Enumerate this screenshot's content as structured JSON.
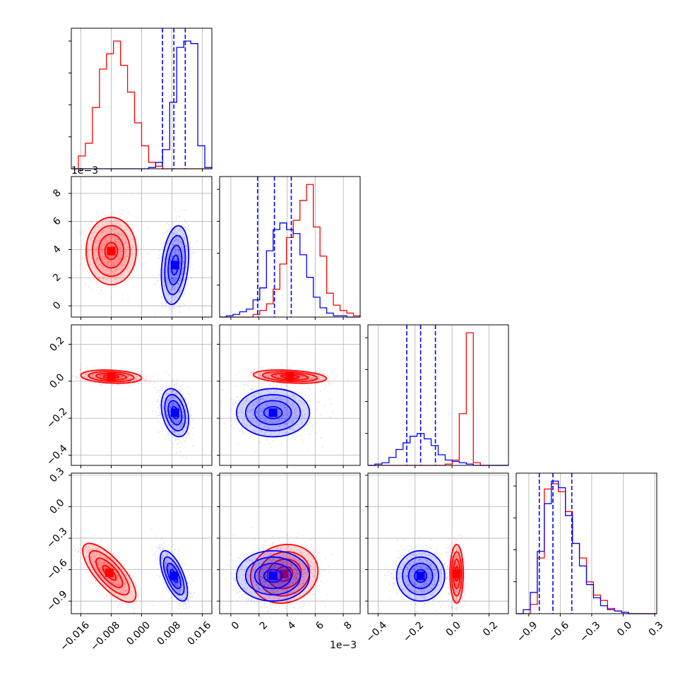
{
  "colors": {
    "red_series": "#ff0000",
    "blue_series": "#0000ff",
    "quantile_line": "#0000ff",
    "grid": "#b0b0b0",
    "axes": "#000000"
  },
  "chart_data": {
    "type": "corner",
    "grid": true,
    "series": [
      {
        "color": "#ff0000"
      },
      {
        "color": "#0000ff"
      }
    ],
    "parameters": [
      {
        "index": 0,
        "range": [
          -0.0185,
          0.0185
        ],
        "ticks": [
          -0.016,
          -0.008,
          0.0,
          0.008,
          0.016
        ],
        "tick_labels": [
          "−0.016",
          "−0.008",
          "0.000",
          "0.008",
          "0.016"
        ]
      },
      {
        "index": 1,
        "range": [
          -0.0008,
          0.0092
        ],
        "ticks": [
          0,
          0.002,
          0.004,
          0.006,
          0.008
        ],
        "tick_labels": [
          "0",
          "2",
          "4",
          "6",
          "8"
        ],
        "offset_text": "1e−3"
      },
      {
        "index": 2,
        "range": [
          -0.455,
          0.305
        ],
        "ticks": [
          -0.4,
          -0.2,
          0.0,
          0.2
        ],
        "tick_labels": [
          "−0.4",
          "−0.2",
          "0.0",
          "0.2"
        ]
      },
      {
        "index": 3,
        "range": [
          -1.02,
          0.32
        ],
        "ticks": [
          -0.9,
          -0.6,
          -0.3,
          0.0,
          0.3
        ],
        "tick_labels": [
          "−0.9",
          "−0.6",
          "−0.3",
          "0.0",
          "0.3"
        ]
      }
    ],
    "histograms": [
      {
        "param": 0,
        "bins": [
          -0.0185,
          0.0185,
          20
        ],
        "ymax": 1.1,
        "red": [
          0.0,
          0.1,
          0.2,
          0.48,
          0.78,
          0.9,
          1.0,
          0.81,
          0.6,
          0.36,
          0.18,
          0.05,
          0.02,
          0.0,
          0.0,
          0.0,
          0.0,
          0.0,
          0.0,
          0.0
        ],
        "blue": [
          0.0,
          0.0,
          0.0,
          0.0,
          0.0,
          0.0,
          0.0,
          0.0,
          0.0,
          0.0,
          0.0,
          0.01,
          0.05,
          0.15,
          0.52,
          0.95,
          1.0,
          0.98,
          0.18,
          0.01
        ],
        "quantiles": [
          0.0055,
          0.0085,
          0.0115
        ]
      },
      {
        "param": 1,
        "bins": [
          -0.0008,
          0.0092,
          21
        ],
        "ymax": 1.06,
        "red": [
          0.0,
          0.0,
          0.0,
          0.0,
          0.0,
          0.02,
          0.05,
          0.1,
          0.21,
          0.4,
          0.6,
          0.73,
          0.88,
          1.0,
          0.68,
          0.46,
          0.18,
          0.09,
          0.05,
          0.03,
          0.01
        ],
        "blue": [
          0.0,
          0.01,
          0.02,
          0.04,
          0.06,
          0.13,
          0.22,
          0.5,
          0.66,
          0.71,
          0.66,
          0.63,
          0.47,
          0.3,
          0.15,
          0.07,
          0.03,
          0.01,
          0.01,
          0.0,
          0.0
        ],
        "quantiles": [
          0.0019,
          0.0031,
          0.0043
        ]
      },
      {
        "param": 2,
        "bins": [
          -0.455,
          0.305,
          20
        ],
        "ymax": 1.06,
        "red": [
          0.0,
          0.0,
          0.0,
          0.0,
          0.0,
          0.0,
          0.0,
          0.0,
          0.0,
          0.0,
          0.0,
          0.01,
          0.04,
          0.39,
          1.0,
          0.02,
          0.0,
          0.0,
          0.0,
          0.0
        ],
        "blue": [
          0.0,
          0.01,
          0.02,
          0.06,
          0.12,
          0.17,
          0.22,
          0.24,
          0.2,
          0.15,
          0.08,
          0.04,
          0.03,
          0.02,
          0.01,
          0.0,
          0.0,
          0.0,
          0.0,
          0.0
        ],
        "quantiles": [
          -0.245,
          -0.17,
          -0.09
        ]
      },
      {
        "param": 3,
        "bins": [
          -1.02,
          0.32,
          20
        ],
        "ymax": 1.06,
        "red": [
          0.0,
          0.0,
          0.07,
          0.42,
          0.94,
          0.98,
          0.92,
          0.77,
          0.53,
          0.42,
          0.24,
          0.14,
          0.1,
          0.04,
          0.02,
          0.01,
          0.0,
          0.0,
          0.0,
          0.0
        ],
        "blue": [
          0.0,
          0.03,
          0.16,
          0.47,
          0.83,
          1.0,
          0.95,
          0.74,
          0.53,
          0.36,
          0.22,
          0.12,
          0.06,
          0.03,
          0.02,
          0.01,
          0.0,
          0.0,
          0.0,
          0.0
        ],
        "quantiles": [
          -0.8,
          -0.67,
          -0.49
        ]
      }
    ],
    "scatter_panels": [
      {
        "x_param": 0,
        "y_param": 1,
        "red": {
          "center": [
            -0.008,
            0.0039
          ],
          "sd": [
            0.0033,
            0.0012
          ],
          "rho": 0.0
        },
        "blue": {
          "center": [
            0.0088,
            0.0029
          ],
          "sd": [
            0.0018,
            0.0014
          ],
          "rho": 0.25
        }
      },
      {
        "x_param": 0,
        "y_param": 2,
        "red": {
          "center": [
            -0.008,
            0.025
          ],
          "sd": [
            0.004,
            0.018
          ],
          "rho": -0.2
        },
        "blue": {
          "center": [
            0.0088,
            -0.17
          ],
          "sd": [
            0.0018,
            0.065
          ],
          "rho": -0.3
        }
      },
      {
        "x_param": 0,
        "y_param": 3,
        "red": {
          "center": [
            -0.0085,
            -0.63
          ],
          "sd": [
            0.0035,
            0.14
          ],
          "rho": -0.75
        },
        "blue": {
          "center": [
            0.0085,
            -0.66
          ],
          "sd": [
            0.0018,
            0.12
          ],
          "rho": -0.65
        }
      },
      {
        "x_param": 1,
        "y_param": 2,
        "red": {
          "center": [
            0.0042,
            0.025
          ],
          "sd": [
            0.0013,
            0.018
          ],
          "rho": -0.3
        },
        "blue": {
          "center": [
            0.003,
            -0.17
          ],
          "sd": [
            0.0013,
            0.065
          ],
          "rho": 0.0
        }
      },
      {
        "x_param": 1,
        "y_param": 3,
        "red": {
          "center": [
            0.0038,
            -0.64
          ],
          "sd": [
            0.0012,
            0.14
          ],
          "rho": 0.1
        },
        "blue": {
          "center": [
            0.003,
            -0.66
          ],
          "sd": [
            0.0013,
            0.12
          ],
          "rho": 0.0
        }
      },
      {
        "x_param": 2,
        "y_param": 3,
        "red": {
          "center": [
            0.025,
            -0.64
          ],
          "sd": [
            0.018,
            0.14
          ],
          "rho": 0.0
        },
        "blue": {
          "center": [
            -0.17,
            -0.66
          ],
          "sd": [
            0.065,
            0.12
          ],
          "rho": 0.0
        }
      }
    ]
  }
}
